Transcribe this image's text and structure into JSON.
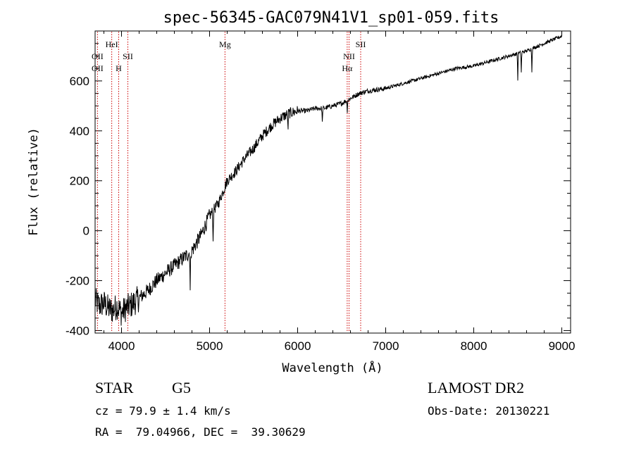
{
  "chart_data": {
    "type": "line",
    "title": "spec-56345-GAC079N41V1_sp01-059.fits",
    "xlabel": "Wavelength (Å)",
    "ylabel": "Flux (relative)",
    "xlim": [
      3700,
      9100
    ],
    "ylim": [
      -410,
      800
    ],
    "xticks": [
      4000,
      5000,
      6000,
      7000,
      8000,
      9000
    ],
    "yticks": [
      -400,
      -200,
      0,
      200,
      400,
      600
    ],
    "x_tick_labels": [
      "4000",
      "5000",
      "6000",
      "7000",
      "8000",
      "9000"
    ],
    "y_tick_labels": [
      "-400",
      "-200",
      "0",
      "200",
      "400",
      "600"
    ],
    "grid": false,
    "line_color": "#000000",
    "marker_color": "#cc0000",
    "series": [
      {
        "x": [
          3700,
          3750,
          3800,
          3850,
          3900,
          3950,
          4000,
          4050,
          4100,
          4200,
          4300,
          4400,
          4500,
          4600,
          4700,
          4800,
          4900,
          5000,
          5100,
          5200,
          5300,
          5400,
          5500,
          5600,
          5700,
          5800,
          5900,
          6000,
          6100,
          6200,
          6300,
          6400,
          6500,
          6600,
          6700,
          6800,
          6900,
          7000,
          7200,
          7400,
          7600,
          7800,
          8000,
          8200,
          8400,
          8600,
          8800,
          9000
        ],
        "y": [
          -280,
          -300,
          -290,
          -310,
          -320,
          -300,
          -330,
          -310,
          -300,
          -270,
          -240,
          -200,
          -170,
          -140,
          -110,
          -80,
          -20,
          60,
          110,
          200,
          240,
          290,
          330,
          380,
          420,
          450,
          470,
          480,
          480,
          490,
          490,
          500,
          510,
          530,
          550,
          560,
          565,
          570,
          590,
          610,
          630,
          650,
          660,
          680,
          700,
          720,
          750,
          780
        ]
      }
    ],
    "absorption_dips": [
      {
        "x": 4780,
        "depth": 160
      },
      {
        "x": 5040,
        "depth": 130
      },
      {
        "x": 5890,
        "depth": 80
      },
      {
        "x": 6280,
        "depth": 60
      },
      {
        "x": 6563,
        "depth": 50
      },
      {
        "x": 8500,
        "depth": 110
      },
      {
        "x": 8540,
        "depth": 80
      },
      {
        "x": 8660,
        "depth": 90
      }
    ],
    "line_markers": [
      {
        "x": 3727,
        "label": "OII",
        "row": 2
      },
      {
        "x": 3727,
        "label": "OII",
        "row": 3
      },
      {
        "x": 3889,
        "label": "HeI",
        "row": 1
      },
      {
        "x": 3968,
        "label": "H",
        "row": 3
      },
      {
        "x": 4072,
        "label": "SII",
        "row": 2
      },
      {
        "x": 5175,
        "label": "Mg",
        "row": 1
      },
      {
        "x": 6584,
        "label": "NII",
        "row": 2
      },
      {
        "x": 6563,
        "label": "Hα",
        "row": 3
      },
      {
        "x": 6716,
        "label": "SII",
        "row": 1
      }
    ]
  },
  "info": {
    "object_type": "STAR",
    "subclass": "G5",
    "survey": "LAMOST DR2",
    "redshift": "cz = 79.9 ± 1.4 km/s",
    "obs_date": "Obs-Date: 20130221",
    "coords": "RA =  79.04966, DEC =  39.30629"
  }
}
